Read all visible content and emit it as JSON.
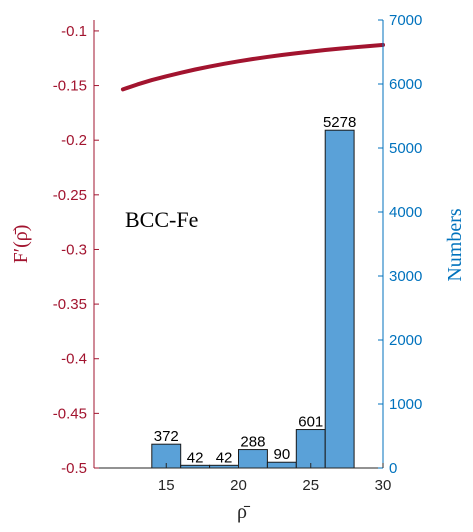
{
  "chart_data": {
    "type": "bar",
    "annotation": "BCC-Fe",
    "xlabel": "ρ̄",
    "ylabel_left": "F′(ρ̄)",
    "ylabel_right": "Numbers",
    "xlim": [
      10,
      30
    ],
    "ylim_left": [
      -0.5,
      -0.09
    ],
    "ylim_right": [
      0,
      7000
    ],
    "x_ticks": [
      15,
      20,
      25,
      30
    ],
    "y_left_ticks": [
      -0.5,
      -0.45,
      -0.4,
      -0.35,
      -0.3,
      -0.25,
      -0.2,
      -0.15,
      -0.1
    ],
    "y_right_ticks": [
      0,
      1000,
      2000,
      3000,
      4000,
      5000,
      6000,
      7000
    ],
    "grid": false,
    "colors": {
      "line": "#A2142F",
      "bar_fill": "#5AA1D8",
      "bar_edge": "#1a1a1a",
      "right_axis": "#0072BD",
      "left_axis": "#A2142F",
      "bottom_axis": "#262626"
    },
    "histogram": {
      "bin_edges": [
        14,
        16,
        18,
        20,
        22,
        24,
        26,
        28
      ],
      "values": [
        372,
        42,
        42,
        288,
        90,
        601,
        5278
      ],
      "labels": [
        "372",
        "42",
        "42",
        "288",
        "90",
        "601",
        "5278"
      ]
    },
    "line_series": {
      "x": [
        12,
        13,
        14,
        15,
        16,
        17,
        18,
        19,
        20,
        21,
        22,
        23,
        24,
        25,
        26,
        27,
        28,
        29,
        30
      ],
      "y": [
        -0.1535,
        -0.149,
        -0.145,
        -0.1415,
        -0.1383,
        -0.1353,
        -0.1326,
        -0.1301,
        -0.1278,
        -0.1257,
        -0.1238,
        -0.122,
        -0.1204,
        -0.1189,
        -0.1175,
        -0.1162,
        -0.115,
        -0.1139,
        -0.1128
      ]
    }
  }
}
